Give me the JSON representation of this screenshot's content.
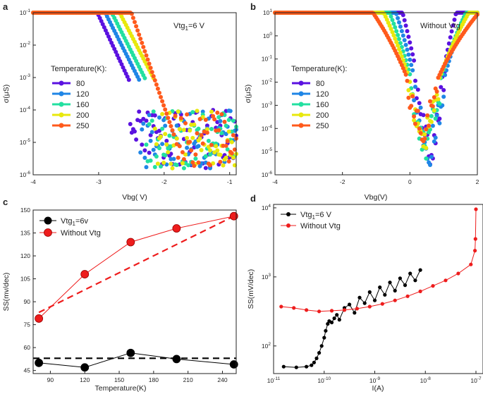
{
  "chart_data": [
    {
      "panel": "a",
      "type": "line",
      "title": "",
      "annotation": "Vtg1=6 V",
      "annotation_main": "Vtg",
      "annotation_sub": "1",
      "annotation_rest": "=6 V",
      "xlabel": "Vbg( V)",
      "ylabel": "σ(μS)",
      "xlim": [
        -4,
        -0.9
      ],
      "ylim_log": [
        -6,
        -1
      ],
      "xticks": [
        "-4",
        "-3",
        "-2",
        "-1"
      ],
      "ytick_bases": [
        "10",
        "10",
        "10",
        "10",
        "10",
        "10"
      ],
      "ytick_exps": [
        "-6",
        "-5",
        "-4",
        "-3",
        "-2",
        "-1"
      ],
      "legend_title": "Temperature(K):",
      "series": [
        {
          "name": "80",
          "color": "#5b12e0",
          "sat_end": -3.02,
          "slope": 4.3,
          "cutoff": -2.53
        },
        {
          "name": "120",
          "color": "#1f86e6",
          "sat_end": -2.9,
          "slope": 4.0,
          "cutoff": -2.38
        },
        {
          "name": "160",
          "color": "#22e0a0",
          "sat_end": -2.8,
          "slope": 4.0,
          "cutoff": -2.28
        },
        {
          "name": "200",
          "color": "#e8e80c",
          "sat_end": -2.68,
          "slope": 3.9,
          "cutoff": -2.15
        },
        {
          "name": "250",
          "color": "#ff5a1c",
          "sat_end": -2.5,
          "slope": 5.8,
          "cutoff": -1.85
        }
      ]
    },
    {
      "panel": "b",
      "type": "line",
      "title": "",
      "annotation": "Without Vtg",
      "xlabel": "Vbg(V)",
      "ylabel": "σ(μS)",
      "xlim": [
        -4,
        2
      ],
      "ylim_log": [
        -6,
        1
      ],
      "xticks": [
        "-4",
        "-2",
        "0",
        "2"
      ],
      "ytick_bases": [
        "10",
        "10",
        "10",
        "10",
        "10",
        "10",
        "10",
        "10"
      ],
      "ytick_exps": [
        "-6",
        "-5",
        "-4",
        "-3",
        "-2",
        "-1",
        "0",
        "1"
      ],
      "legend_title": "Temperature(K):",
      "series": [
        {
          "name": "80",
          "color": "#5b12e0",
          "min_x": 0.6,
          "min_log": -5.0,
          "left_slope": 10.5,
          "right_slope": 6.2
        },
        {
          "name": "120",
          "color": "#1f86e6",
          "min_x": 0.55,
          "min_log": -4.8,
          "left_slope": 9.0,
          "right_slope": 4.6
        },
        {
          "name": "160",
          "color": "#22e0a0",
          "min_x": 0.45,
          "min_log": -4.5,
          "left_slope": 8.0,
          "right_slope": 4.1
        },
        {
          "name": "200",
          "color": "#e8e80c",
          "min_x": 0.4,
          "min_log": -4.2,
          "left_slope": 7.0,
          "right_slope": 3.6
        },
        {
          "name": "250",
          "color": "#ff5a1c",
          "min_x": 0.35,
          "min_log": -3.7,
          "left_slope": 5.5,
          "right_slope": 2.8
        }
      ]
    },
    {
      "panel": "c",
      "type": "line",
      "title": "",
      "xlabel": "Temperature(K)",
      "ylabel": "SS(mv/dec)",
      "xlim": [
        75,
        252
      ],
      "ylim": [
        43,
        150
      ],
      "xticks": [
        "90",
        "120",
        "150",
        "180",
        "210",
        "240"
      ],
      "yticks": [
        "45",
        "60",
        "75",
        "90",
        "105",
        "120",
        "135",
        "150"
      ],
      "series": [
        {
          "name": "Vtg1=6v",
          "name_main": "Vtg",
          "name_sub": "1",
          "name_rest": "=6v",
          "color": "#000000",
          "x": [
            80,
            120,
            160,
            200,
            250
          ],
          "y": [
            50,
            47,
            56.5,
            52.5,
            49
          ],
          "fit": {
            "x": [
              75,
              252
            ],
            "y": [
              53,
              53
            ]
          }
        },
        {
          "name": "Without Vtg",
          "color": "#ee1c1c",
          "x": [
            80,
            120,
            160,
            200,
            250
          ],
          "y": [
            79,
            108,
            129,
            138,
            146
          ],
          "fit": {
            "x": [
              80,
              250
            ],
            "y": [
              83,
              146
            ]
          }
        }
      ]
    },
    {
      "panel": "d",
      "type": "scatter",
      "title": "",
      "xlabel": "I(A)",
      "ylabel": "SS(mV/dec)",
      "xlim_log": [
        -11,
        -7
      ],
      "ylim_log": [
        1.6,
        4.05
      ],
      "xtick_bases": [
        "10",
        "10",
        "10",
        "10",
        "10"
      ],
      "xtick_exps": [
        "-11",
        "-10",
        "-9",
        "-8",
        "-7"
      ],
      "ytick_bases": [
        "10",
        "10",
        "10"
      ],
      "ytick_exps": [
        "2",
        "3",
        "4"
      ],
      "series": [
        {
          "name": "Vtg1=6 V",
          "name_main": "Vtg",
          "name_sub": "1",
          "name_rest": "=6 V",
          "color": "#000000",
          "x_log": [
            -10.8,
            -10.55,
            -10.35,
            -10.25,
            -10.2,
            -10.15,
            -10.1,
            -10.05,
            -10.0,
            -9.97,
            -9.93,
            -9.9,
            -9.85,
            -9.8,
            -9.75,
            -9.7,
            -9.6,
            -9.5,
            -9.4,
            -9.3,
            -9.2,
            -9.1,
            -9.0,
            -8.9,
            -8.8,
            -8.7,
            -8.6,
            -8.5,
            -8.4,
            -8.3,
            -8.2,
            -8.1
          ],
          "y_log": [
            1.7,
            1.69,
            1.7,
            1.72,
            1.76,
            1.82,
            1.9,
            2.0,
            2.12,
            2.22,
            2.32,
            2.36,
            2.34,
            2.4,
            2.45,
            2.38,
            2.55,
            2.6,
            2.48,
            2.7,
            2.62,
            2.78,
            2.66,
            2.85,
            2.74,
            2.92,
            2.8,
            2.98,
            2.88,
            3.05,
            2.95,
            3.1
          ]
        },
        {
          "name": "Without Vtg",
          "color": "#ee1c1c",
          "x_log": [
            -10.85,
            -10.6,
            -10.35,
            -10.1,
            -9.85,
            -9.6,
            -9.35,
            -9.1,
            -8.85,
            -8.6,
            -8.35,
            -8.1,
            -7.85,
            -7.6,
            -7.35,
            -7.1,
            -7.02,
            -7.01,
            -7.0
          ],
          "y_log": [
            2.57,
            2.55,
            2.52,
            2.5,
            2.51,
            2.52,
            2.54,
            2.57,
            2.61,
            2.66,
            2.72,
            2.79,
            2.87,
            2.95,
            3.05,
            3.18,
            3.38,
            3.55,
            3.98
          ]
        }
      ]
    }
  ]
}
